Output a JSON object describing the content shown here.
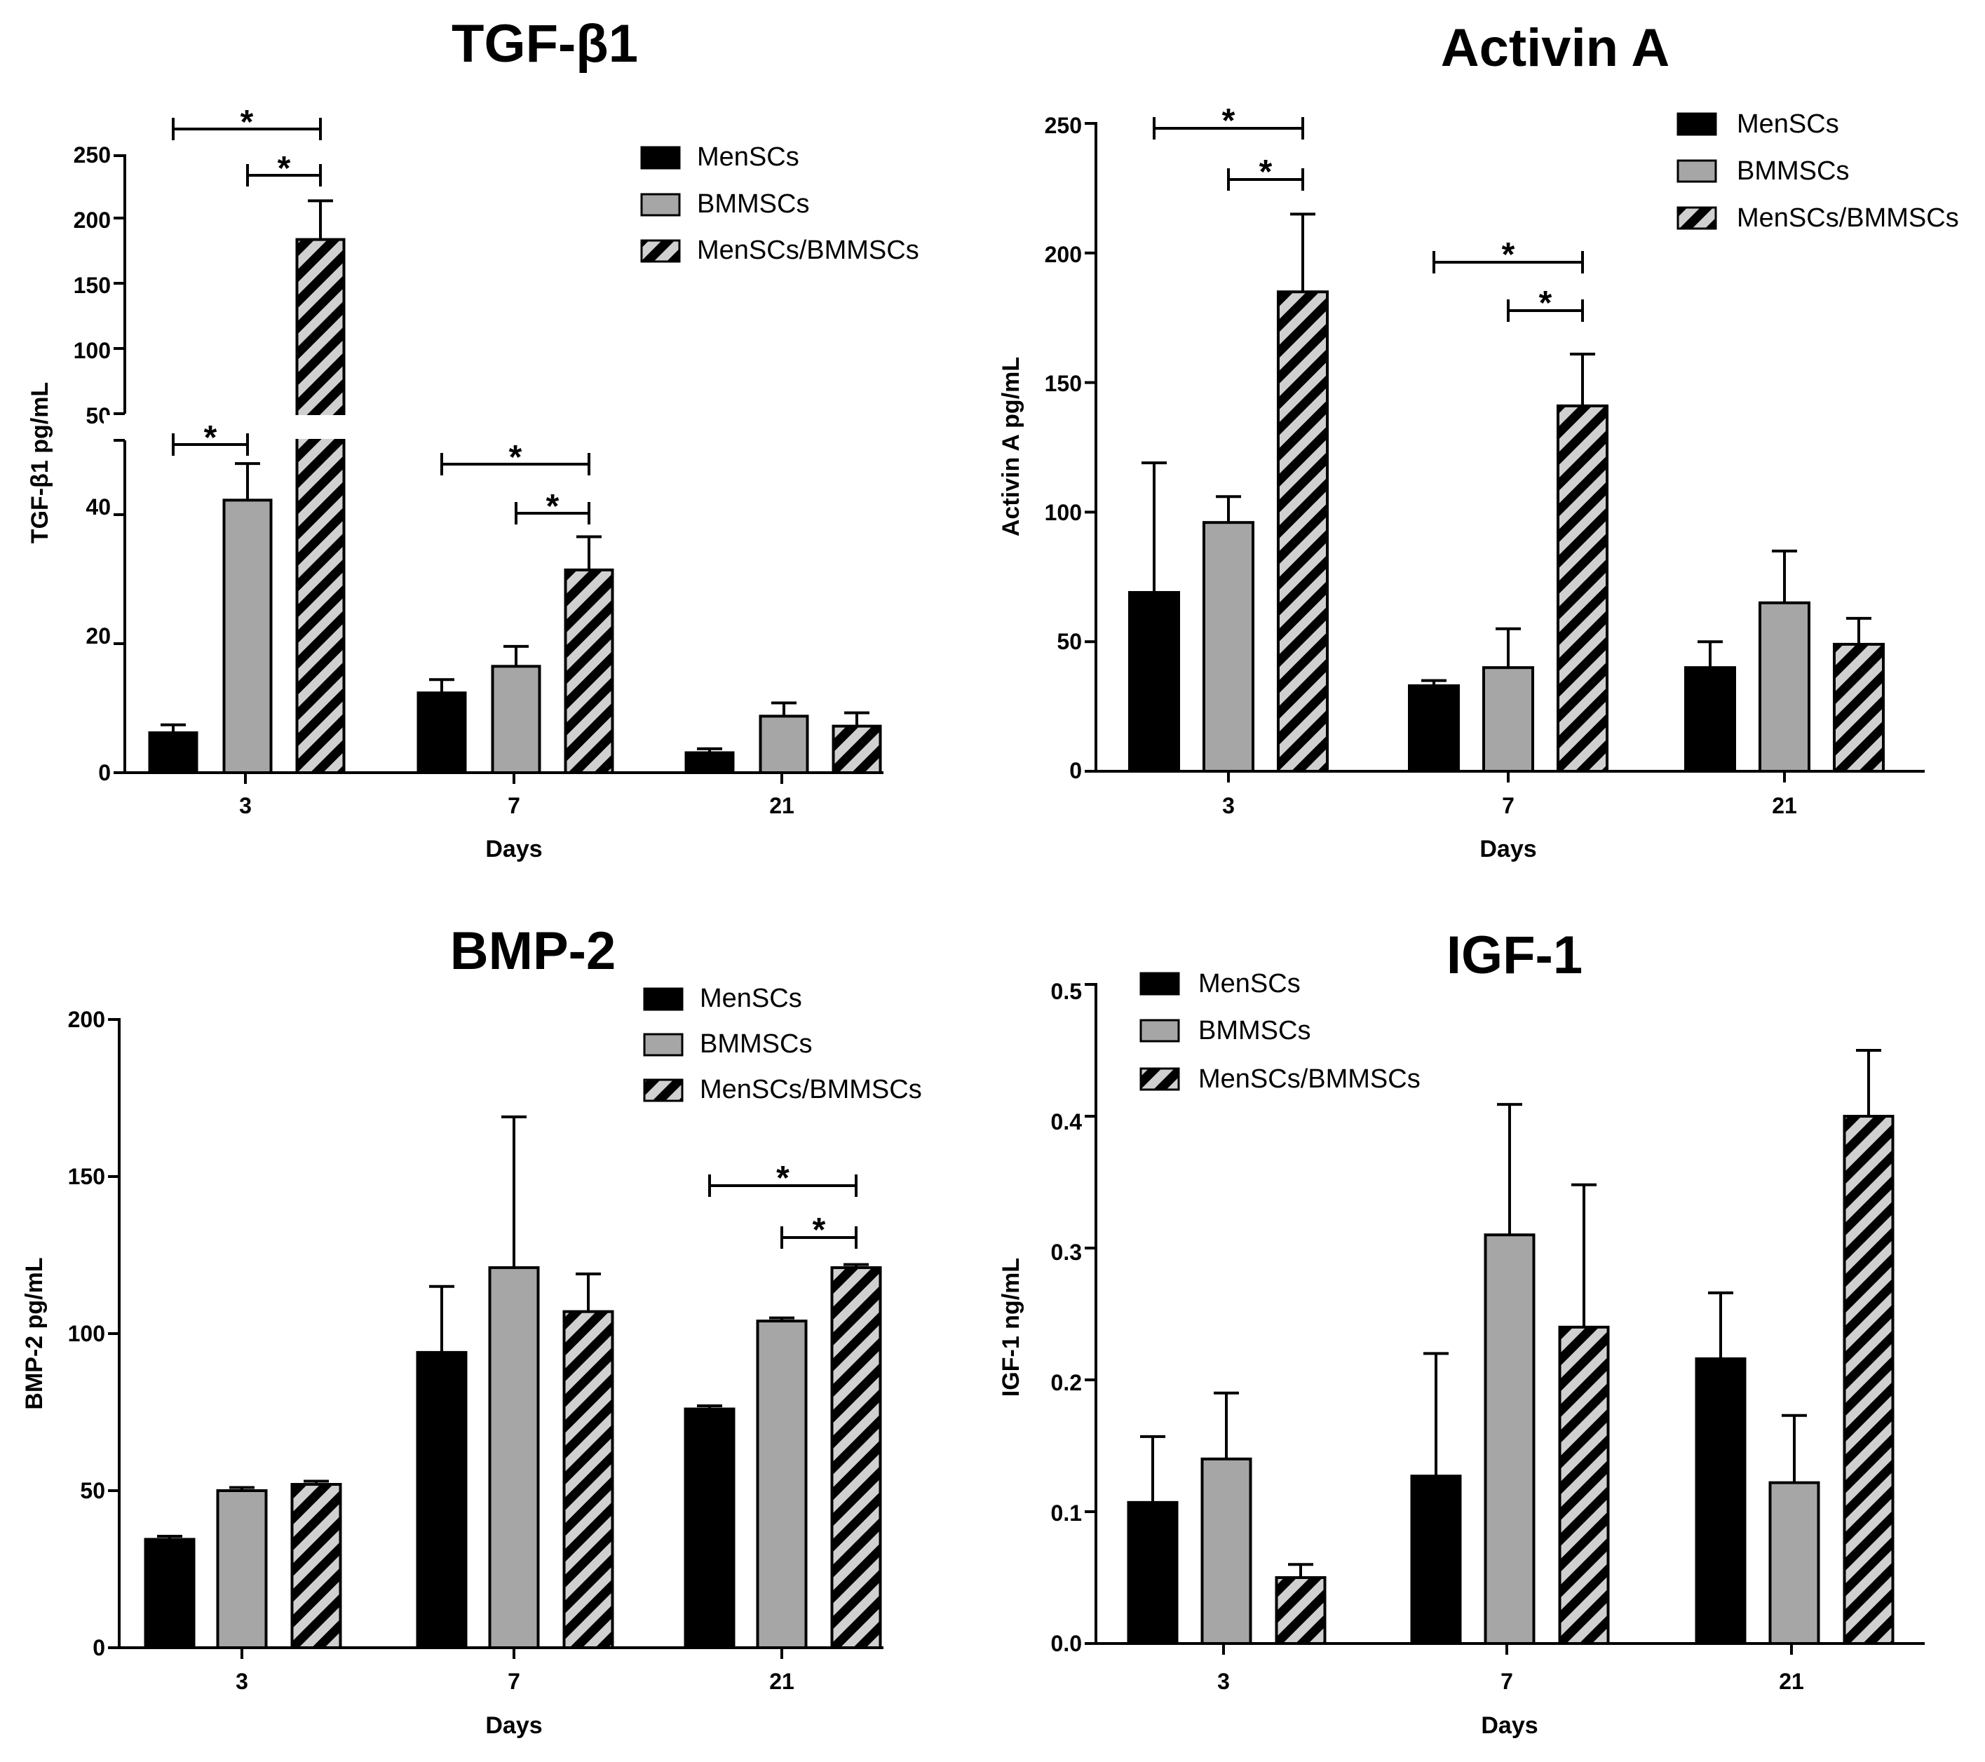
{
  "colors": {
    "MenSCs": "#000000",
    "BMMSCs": "#a6a6a6",
    "MenSCs/BMMSCs": "hatch",
    "hatch_bg": "#d0d0d0"
  },
  "chart_data": [
    {
      "type": "bar",
      "title": "TGF-β1",
      "xlabel": "Days",
      "ylabel": "TGF-β1 pg/mL",
      "categories": [
        "3",
        "7",
        "21"
      ],
      "legend": [
        "MenSCs",
        "BMMSCs",
        "MenSCs/BMMSCs"
      ],
      "legend_position": "top-right",
      "broken_axis": {
        "lower_range": [
          0,
          50
        ],
        "upper_range": [
          50,
          250
        ]
      },
      "yticks_lower": [
        "0",
        "20",
        "40"
      ],
      "yticks_upper": [
        "50",
        "100",
        "150",
        "200",
        "250"
      ],
      "series": [
        {
          "name": "MenSCs",
          "values": [
            6,
            12,
            3
          ],
          "errors": [
            1.2,
            2,
            0.6
          ]
        },
        {
          "name": "BMMSCs",
          "values": [
            41,
            16,
            8.5
          ],
          "errors": [
            5.5,
            3,
            2
          ]
        },
        {
          "name": "MenSCs/BMMSCs",
          "values": [
            185,
            30.5,
            7
          ],
          "errors": [
            30,
            5,
            2
          ]
        }
      ],
      "significance": [
        {
          "group": 0,
          "from": 0,
          "to": 2,
          "label": "*"
        },
        {
          "group": 0,
          "from": 1,
          "to": 2,
          "label": "*"
        },
        {
          "group": 0,
          "from": 0,
          "to": 1,
          "label": "*"
        },
        {
          "group": 1,
          "from": 0,
          "to": 2,
          "label": "*"
        },
        {
          "group": 1,
          "from": 1,
          "to": 2,
          "label": "*"
        }
      ]
    },
    {
      "type": "bar",
      "title": "Activin A",
      "xlabel": "Days",
      "ylabel": "Activin A pg/mL",
      "categories": [
        "3",
        "7",
        "21"
      ],
      "legend": [
        "MenSCs",
        "BMMSCs",
        "MenSCs/BMMSCs"
      ],
      "legend_position": "top-right",
      "ylim": [
        0,
        250
      ],
      "yticks": [
        "0",
        "50",
        "100",
        "150",
        "200",
        "250"
      ],
      "series": [
        {
          "name": "MenSCs",
          "values": [
            69,
            33,
            40
          ],
          "errors": [
            50,
            2,
            10
          ]
        },
        {
          "name": "BMMSCs",
          "values": [
            96,
            40,
            65
          ],
          "errors": [
            10,
            15,
            20
          ]
        },
        {
          "name": "MenSCs/BMMSCs",
          "values": [
            185,
            141,
            49
          ],
          "errors": [
            30,
            20,
            10
          ]
        }
      ],
      "significance": [
        {
          "group": 0,
          "from": 0,
          "to": 2,
          "label": "*"
        },
        {
          "group": 0,
          "from": 1,
          "to": 2,
          "label": "*"
        },
        {
          "group": 1,
          "from": 0,
          "to": 2,
          "label": "*"
        },
        {
          "group": 1,
          "from": 1,
          "to": 2,
          "label": "*"
        }
      ]
    },
    {
      "type": "bar",
      "title": "BMP-2",
      "xlabel": "Days",
      "ylabel": "BMP-2 pg/mL",
      "categories": [
        "3",
        "7",
        "21"
      ],
      "legend": [
        "MenSCs",
        "BMMSCs",
        "MenSCs/BMMSCs"
      ],
      "legend_position": "top-right",
      "ylim": [
        0,
        200
      ],
      "yticks": [
        "0",
        "50",
        "100",
        "150",
        "200"
      ],
      "series": [
        {
          "name": "MenSCs",
          "values": [
            34.5,
            94,
            76
          ],
          "errors": [
            1,
            21,
            1
          ]
        },
        {
          "name": "BMMSCs",
          "values": [
            50,
            121,
            104
          ],
          "errors": [
            1,
            48,
            1
          ]
        },
        {
          "name": "MenSCs/BMMSCs",
          "values": [
            52,
            107,
            121
          ],
          "errors": [
            1,
            12,
            1
          ]
        }
      ],
      "significance": [
        {
          "group": 2,
          "from": 0,
          "to": 2,
          "label": "*"
        },
        {
          "group": 2,
          "from": 1,
          "to": 2,
          "label": "*"
        }
      ]
    },
    {
      "type": "bar",
      "title": "IGF-1",
      "xlabel": "Days",
      "ylabel": "IGF-1 ng/mL",
      "categories": [
        "3",
        "7",
        "21"
      ],
      "legend": [
        "MenSCs",
        "BMMSCs",
        "MenSCs/BMMSCs"
      ],
      "legend_position": "top-left",
      "ylim": [
        0,
        0.5
      ],
      "yticks": [
        "0.0",
        "0.1",
        "0.2",
        "0.3",
        "0.4",
        "0.5"
      ],
      "series": [
        {
          "name": "MenSCs",
          "values": [
            0.107,
            0.127,
            0.216
          ],
          "errors": [
            0.05,
            0.093,
            0.05
          ]
        },
        {
          "name": "BMMSCs",
          "values": [
            0.14,
            0.31,
            0.122
          ],
          "errors": [
            0.05,
            0.099,
            0.051
          ]
        },
        {
          "name": "MenSCs/BMMSCs",
          "values": [
            0.05,
            0.24,
            0.4
          ],
          "errors": [
            0.01,
            0.108,
            0.05
          ]
        }
      ],
      "significance": []
    }
  ]
}
